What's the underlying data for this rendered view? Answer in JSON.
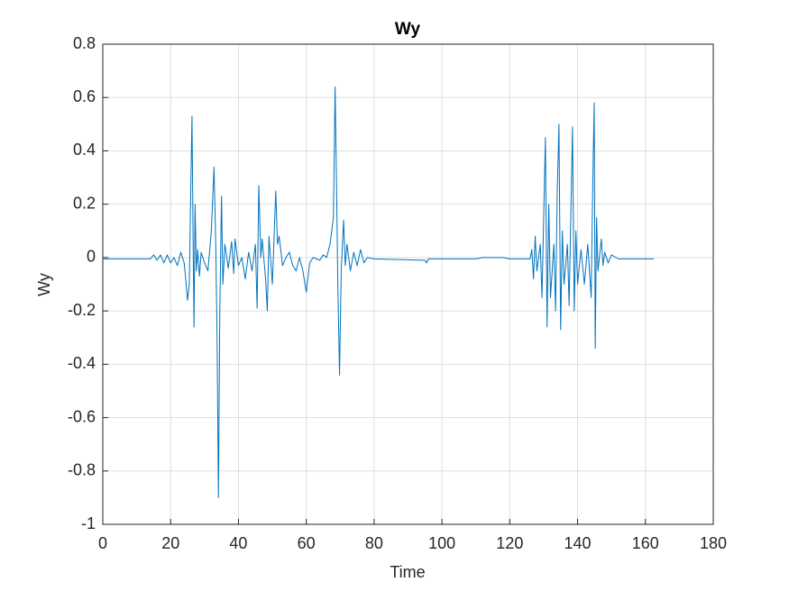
{
  "chart_data": {
    "type": "line",
    "title": "Wy",
    "x_label": "Time",
    "y_label": "Wy",
    "color": "#0072bd",
    "grid": true,
    "xlim": [
      0,
      180
    ],
    "xticks": [
      0,
      20,
      40,
      60,
      80,
      100,
      120,
      140,
      160,
      180
    ],
    "ylim": [
      -1,
      0.8
    ],
    "yticks": [
      -1,
      -0.8,
      -0.6,
      -0.4,
      -0.2,
      0,
      0.2,
      0.4,
      0.6,
      0.8
    ],
    "x": [
      0,
      14,
      15,
      16,
      17,
      18,
      19,
      20,
      21,
      22,
      23,
      24,
      25,
      25.5,
      26,
      26.3,
      26.6,
      26.9,
      27.2,
      27.6,
      28,
      28.5,
      29,
      30,
      31,
      32,
      32.8,
      33.3,
      33.7,
      34.1,
      34.5,
      35,
      35.4,
      36,
      37,
      38,
      38.6,
      39,
      40,
      41,
      42,
      43,
      44,
      45,
      45.5,
      46,
      46.6,
      47,
      48,
      48.5,
      49,
      50,
      51,
      51.5,
      52,
      53,
      54,
      55,
      56,
      57,
      58,
      59,
      60,
      61,
      62,
      64,
      65,
      66,
      67,
      68,
      68.5,
      69,
      69.3,
      69.8,
      70.3,
      71,
      71.5,
      72,
      73,
      74,
      75,
      76,
      77,
      78,
      80,
      95,
      95.5,
      96,
      110,
      112,
      118,
      120,
      126,
      126.5,
      127,
      127.5,
      128,
      129,
      129.5,
      130,
      130.5,
      131,
      131.5,
      132,
      133,
      133.5,
      134,
      134.5,
      135,
      135.5,
      136,
      137,
      137.5,
      138.5,
      139,
      139.5,
      140,
      141,
      142,
      143,
      144,
      144.5,
      144.9,
      145.2,
      145.6,
      146,
      147,
      147.5,
      148,
      149,
      150,
      152,
      162.5
    ],
    "values": [
      -0.005,
      -0.005,
      0.01,
      -0.01,
      0.01,
      -0.02,
      0.01,
      -0.02,
      0.0,
      -0.03,
      0.02,
      -0.02,
      -0.16,
      -0.1,
      0.3,
      0.53,
      0.1,
      -0.26,
      0.2,
      -0.05,
      0.03,
      -0.07,
      0.02,
      -0.02,
      -0.05,
      0.1,
      0.34,
      0.05,
      -0.3,
      -0.9,
      -0.2,
      0.23,
      -0.1,
      0.05,
      -0.04,
      0.06,
      -0.06,
      0.07,
      -0.03,
      0.0,
      -0.08,
      0.02,
      -0.05,
      0.05,
      -0.19,
      0.27,
      0.0,
      0.07,
      -0.08,
      -0.2,
      0.08,
      -0.1,
      0.25,
      0.05,
      0.08,
      -0.03,
      0.0,
      0.02,
      -0.03,
      -0.05,
      0.0,
      -0.05,
      -0.13,
      -0.02,
      0.0,
      -0.01,
      0.01,
      0.0,
      0.05,
      0.15,
      0.64,
      0.2,
      -0.1,
      -0.44,
      -0.05,
      0.14,
      -0.03,
      0.05,
      -0.05,
      0.02,
      -0.03,
      0.03,
      -0.02,
      0.0,
      -0.005,
      -0.01,
      -0.02,
      -0.005,
      -0.005,
      0.0,
      0.0,
      -0.005,
      -0.005,
      0.03,
      -0.08,
      0.08,
      -0.05,
      0.05,
      -0.15,
      0.15,
      0.45,
      -0.26,
      0.2,
      -0.15,
      0.05,
      -0.2,
      0.25,
      0.5,
      -0.27,
      0.1,
      -0.1,
      0.05,
      -0.18,
      0.49,
      -0.2,
      0.1,
      -0.1,
      0.03,
      -0.1,
      0.05,
      -0.15,
      0.3,
      0.58,
      -0.34,
      0.15,
      -0.05,
      0.07,
      -0.03,
      0.02,
      -0.02,
      0.01,
      -0.005,
      -0.005
    ]
  }
}
